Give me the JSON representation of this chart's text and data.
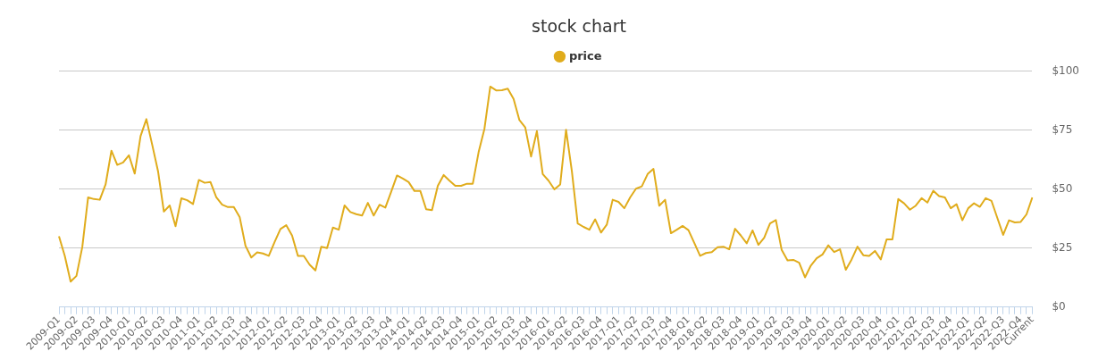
{
  "chart_data": {
    "type": "line",
    "title": "stock chart",
    "categories": [
      "2009-Q1",
      null,
      null,
      "2009-Q2",
      null,
      null,
      "2009-Q3",
      null,
      null,
      "2009-Q4",
      null,
      null,
      "2010-Q1",
      null,
      null,
      "2010-Q2",
      null,
      null,
      "2010-Q3",
      null,
      null,
      "2010-Q4",
      null,
      null,
      "2011-Q1",
      null,
      null,
      "2011-Q2",
      null,
      null,
      "2011-Q3",
      null,
      null,
      "2011-Q4",
      null,
      null,
      "2012-Q1",
      null,
      null,
      "2012-Q2",
      null,
      null,
      "2012-Q3",
      null,
      null,
      "2012-Q4",
      null,
      null,
      "2013-Q1",
      null,
      null,
      "2013-Q2",
      null,
      null,
      "2013-Q3",
      null,
      null,
      "2013-Q4",
      null,
      null,
      "2014-Q1",
      null,
      null,
      "2014-Q2",
      null,
      null,
      "2014-Q3",
      null,
      null,
      "2014-Q4",
      null,
      null,
      "2015-Q1",
      null,
      null,
      "2015-Q2",
      null,
      null,
      "2015-Q3",
      null,
      null,
      "2015-Q4",
      null,
      null,
      "2016-Q1",
      null,
      null,
      "2016-Q2",
      null,
      null,
      "2016-Q3",
      null,
      null,
      "2016-Q4",
      null,
      null,
      "2017-Q1",
      null,
      null,
      "2017-Q2",
      null,
      null,
      "2017-Q3",
      null,
      null,
      "2017-Q4",
      null,
      null,
      "2018-Q1",
      null,
      null,
      "2018-Q2",
      null,
      null,
      "2018-Q3",
      null,
      null,
      "2018-Q4",
      null,
      null,
      "2019-Q1",
      null,
      null,
      "2019-Q2",
      null,
      null,
      "2019-Q3",
      null,
      null,
      "2019-Q4",
      null,
      null,
      "2020-Q1",
      null,
      null,
      "2020-Q2",
      null,
      null,
      "2020-Q3",
      null,
      null,
      "2020-Q4",
      null,
      null,
      "2021-Q1",
      null,
      null,
      "2021-Q2",
      null,
      null,
      "2021-Q3",
      null,
      null,
      "2021-Q4",
      null,
      null,
      "2022-Q1",
      null,
      null,
      "2022-Q2",
      null,
      null,
      "2022-Q3",
      null,
      null,
      "2022-Q4",
      null,
      "Current"
    ],
    "series": [
      {
        "name": "price",
        "color": "#e0ac1c",
        "values": [
          30,
          21.7,
          10.8,
          13.2,
          25.4,
          46.5,
          45.8,
          45.5,
          52,
          66.3,
          60.3,
          61.3,
          64.4,
          56.6,
          72.5,
          79.7,
          68.8,
          57.6,
          40.5,
          43.1,
          34.3,
          46.1,
          45.3,
          43.7,
          53.9,
          52.7,
          53,
          46.5,
          43.4,
          42.4,
          42.4,
          38.2,
          26,
          21,
          23.2,
          22.7,
          21.7,
          27.6,
          33.1,
          34.7,
          30.3,
          21.7,
          21.7,
          18,
          15.5,
          25.6,
          25,
          33.7,
          32.8,
          43.1,
          40.3,
          39.4,
          38.8,
          44.2,
          38.8,
          43.4,
          42.2,
          48.9,
          55.8,
          54.5,
          53,
          49.2,
          49.2,
          41.5,
          41.1,
          51.4,
          56,
          53.6,
          51.4,
          51.4,
          52.3,
          52.3,
          65.7,
          75.6,
          93.5,
          91.9,
          92,
          92.6,
          88.3,
          79.3,
          76.2,
          63.8,
          74.6,
          56.4,
          53.6,
          49.9,
          52,
          75.2,
          57.6,
          35.5,
          34,
          32.8,
          37.2,
          31.6,
          35,
          45.5,
          44.6,
          41.9,
          46.5,
          50.2,
          51.2,
          56.4,
          58.6,
          43,
          45.5,
          31.3,
          32.8,
          34.4,
          32.6,
          27.2,
          21.7,
          22.9,
          23.3,
          25.4,
          25.6,
          24.5,
          33.2,
          30.3,
          27,
          32.5,
          26.4,
          29.4,
          35.5,
          36.9,
          24.2,
          19.8,
          20,
          18.8,
          12.6,
          17.6,
          20.7,
          22.3,
          26.2,
          23.3,
          24.5,
          15.8,
          20.2,
          25.6,
          22,
          21.7,
          23.8,
          20.2,
          28.7,
          28.7,
          45.8,
          44,
          41.3,
          43,
          46.2,
          44.3,
          49.3,
          47.1,
          46.5,
          41.9,
          43.6,
          36.8,
          41.9,
          44,
          42.5,
          46.2,
          45,
          37.8,
          30.6,
          36.8,
          35.9,
          36.1,
          39.3,
          46.5
        ]
      }
    ],
    "ylim": [
      0,
      100
    ],
    "yticks": [
      {
        "value": 0,
        "label": "$0"
      },
      {
        "value": 25,
        "label": "$25"
      },
      {
        "value": 50,
        "label": "$50"
      },
      {
        "value": 75,
        "label": "$75"
      },
      {
        "value": 100,
        "label": "$100"
      }
    ],
    "grid": "y",
    "legend": "top",
    "marker": "none",
    "line_style": "solid"
  }
}
